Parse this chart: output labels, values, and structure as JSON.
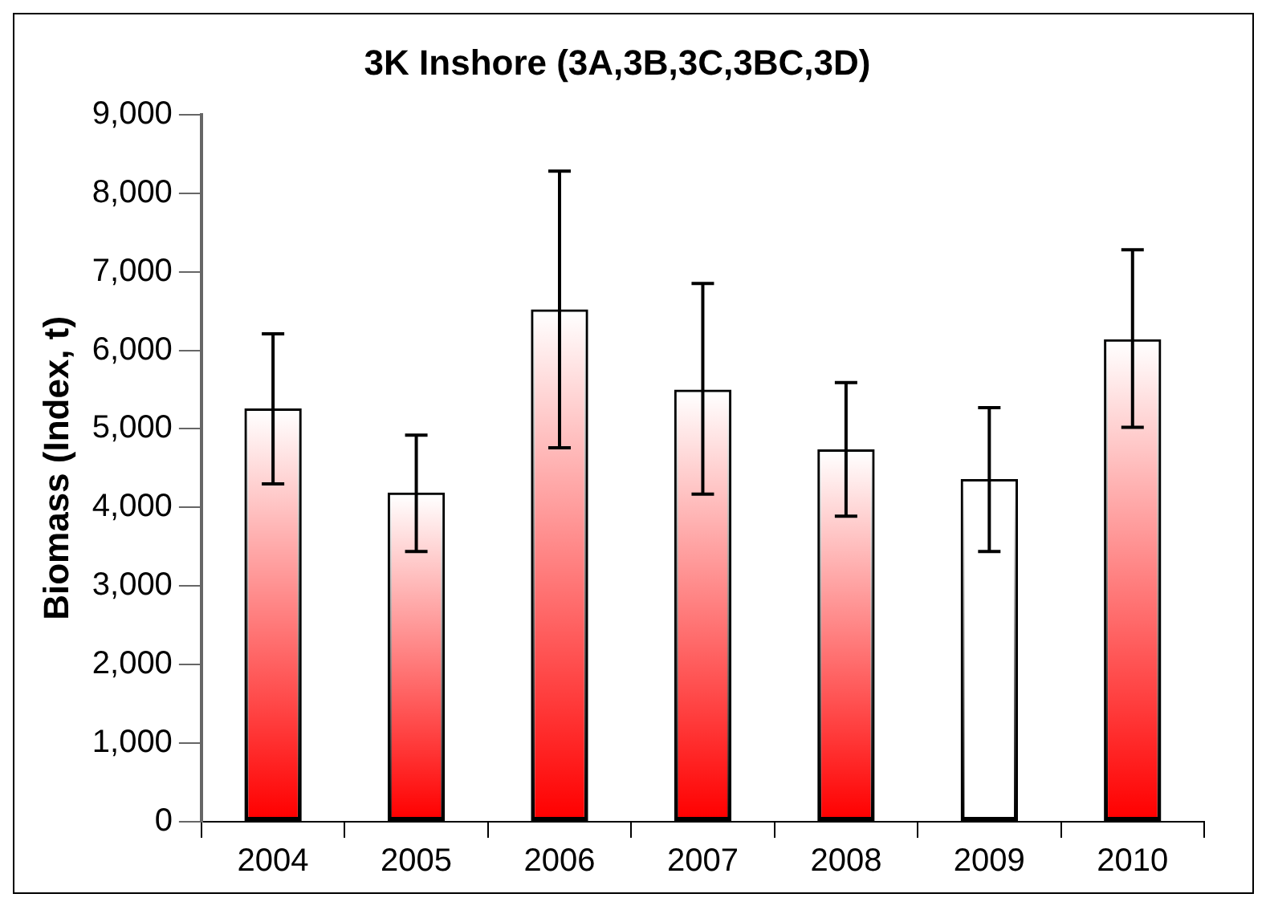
{
  "chart_data": {
    "type": "bar",
    "title": "3K Inshore (3A,3B,3C,3BC,3D)",
    "ylabel": "Biomass (Index, t)",
    "categories": [
      "2004",
      "2005",
      "2006",
      "2007",
      "2008",
      "2009",
      "2010"
    ],
    "values": [
      5260,
      4190,
      6520,
      5500,
      4740,
      4360,
      6140
    ],
    "colors": [
      "#ff0000",
      "#ff0000",
      "#ff0000",
      "#ff0000",
      "#ff0000",
      "#ffffff",
      "#ff0000"
    ],
    "errors": [
      [
        4300,
        6210
      ],
      [
        3440,
        4920
      ],
      [
        4760,
        8280
      ],
      [
        4170,
        6850
      ],
      [
        3890,
        5590
      ],
      [
        3440,
        5270
      ],
      [
        5020,
        7280
      ]
    ],
    "ylim": [
      0,
      9000
    ],
    "yticks": [
      0,
      {
        "value": 1000,
        "label": "1,000"
      },
      {
        "value": 2000,
        "label": "2,000"
      },
      {
        "value": 3000,
        "label": "3,000"
      },
      {
        "value": 4000,
        "label": "4,000"
      },
      {
        "value": 5000,
        "label": "5,000"
      },
      {
        "value": 6000,
        "label": "6,000"
      },
      {
        "value": 7000,
        "label": "7,000"
      },
      {
        "value": 8000,
        "label": "8,000"
      },
      {
        "value": 9000,
        "label": "9,000"
      }
    ],
    "grid": false,
    "legend": false
  }
}
